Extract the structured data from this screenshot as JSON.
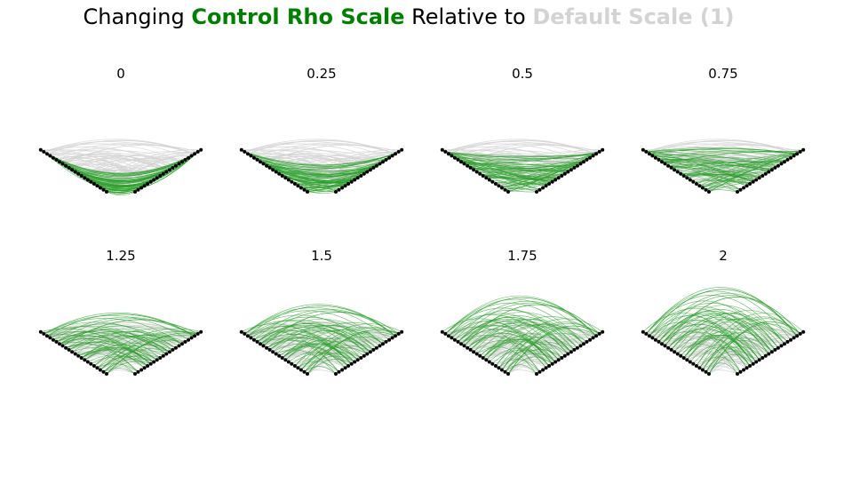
{
  "title": {
    "part1": "Changing ",
    "highlight1": "Control Rho Scale",
    "part2": " Relative to ",
    "highlight2": "Default Scale (1)",
    "highlight1_color": "#008000",
    "highlight2_color": "#d3d3d3"
  },
  "chart_data": {
    "type": "hive-plot-grid",
    "panel_titles": [
      "0",
      "0.25",
      "0.5",
      "0.75",
      "1.25",
      "1.5",
      "1.75",
      "2"
    ],
    "rho_scales": [
      0,
      0.25,
      0.5,
      0.75,
      1.25,
      1.5,
      1.75,
      2
    ],
    "default_scale": 1,
    "grid": {
      "rows": 2,
      "cols": 4
    },
    "axes": 2,
    "nodes_per_axis": 22,
    "edge_colors": {
      "control": "#2ca02c",
      "default": "#d3d3d3",
      "node": "#000000"
    }
  }
}
